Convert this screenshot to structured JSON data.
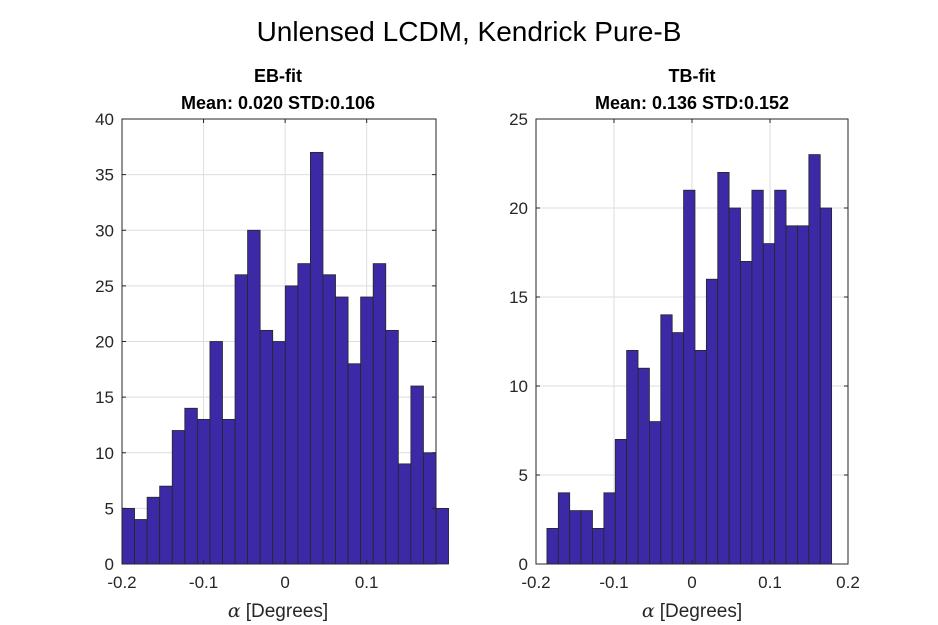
{
  "figure": {
    "title": "Unlensed LCDM, Kendrick Pure-B"
  },
  "chart_data": [
    {
      "type": "bar",
      "title_line1": "EB-fit",
      "title_line2": "Mean: 0.020 STD:0.106",
      "xlabel_symbol": "α",
      "xlabel": "[Degrees]",
      "ylabel": "",
      "xlim": [
        -0.2,
        0.185
      ],
      "ylim": [
        0,
        40
      ],
      "xticks": [
        -0.2,
        -0.1,
        0,
        0.1
      ],
      "xtick_labels": [
        "-0.2",
        "-0.1",
        "0",
        "0.1"
      ],
      "yticks": [
        0,
        5,
        10,
        15,
        20,
        25,
        30,
        35,
        40
      ],
      "ytick_labels": [
        "0",
        "5",
        "10",
        "15",
        "20",
        "25",
        "30",
        "35",
        "40"
      ],
      "bin_start": -0.2,
      "bin_width": 0.0154,
      "values": [
        5,
        4,
        6,
        7,
        12,
        14,
        13,
        20,
        13,
        26,
        30,
        21,
        20,
        25,
        27,
        37,
        26,
        24,
        18,
        24,
        27,
        21,
        9,
        16,
        10,
        5
      ],
      "grid": true,
      "bar_color": "#3c29a6",
      "edge_color": "#262626"
    },
    {
      "type": "bar",
      "title_line1": "TB-fit",
      "title_line2": "Mean: 0.136 STD:0.152",
      "xlabel_symbol": "α",
      "xlabel": "[Degrees]",
      "ylabel": "",
      "xlim": [
        -0.2,
        0.2
      ],
      "ylim": [
        0,
        25
      ],
      "xticks": [
        -0.2,
        -0.1,
        0,
        0.1,
        0.2
      ],
      "xtick_labels": [
        "-0.2",
        "-0.1",
        "0",
        "0.1",
        "0.2"
      ],
      "yticks": [
        0,
        5,
        10,
        15,
        20,
        25
      ],
      "ytick_labels": [
        "0",
        "5",
        "10",
        "15",
        "20",
        "25"
      ],
      "bin_start": -0.186,
      "bin_width": 0.0146,
      "values": [
        2,
        4,
        3,
        3,
        2,
        4,
        7,
        12,
        11,
        8,
        14,
        13,
        21,
        12,
        16,
        22,
        20,
        17,
        21,
        18,
        21,
        19,
        19,
        23,
        20
      ],
      "grid": true,
      "bar_color": "#3c29a6",
      "edge_color": "#262626"
    }
  ]
}
